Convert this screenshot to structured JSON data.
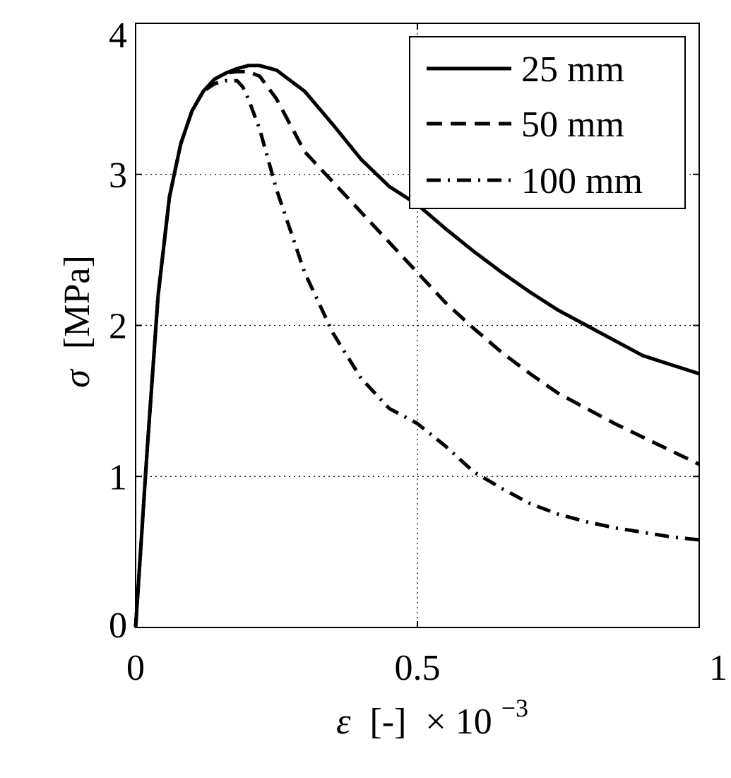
{
  "chart_data": {
    "type": "line",
    "title": "",
    "xlabel": {
      "symbol": "ε",
      "unit": "[-]",
      "multiplier": "× 10",
      "exponent": "−3"
    },
    "ylabel": {
      "symbol": "σ",
      "unit": "[MPa]"
    },
    "xlim": [
      0,
      1
    ],
    "ylim": [
      0,
      4
    ],
    "xticks": [
      0,
      0.5,
      1
    ],
    "xtick_labels": [
      "0",
      "0.5",
      "1"
    ],
    "yticks": [
      0,
      1,
      2,
      3,
      4
    ],
    "ytick_labels": [
      "0",
      "1",
      "2",
      "3",
      "4"
    ],
    "grid": true,
    "legend_position": "top-right",
    "series": [
      {
        "name": "25 mm",
        "line_style": "solid",
        "x": [
          0,
          0.02,
          0.04,
          0.06,
          0.08,
          0.1,
          0.12,
          0.14,
          0.16,
          0.18,
          0.2,
          0.22,
          0.25,
          0.3,
          0.35,
          0.4,
          0.45,
          0.5,
          0.55,
          0.6,
          0.65,
          0.7,
          0.75,
          0.8,
          0.85,
          0.9,
          0.95,
          1.0
        ],
        "y": [
          0,
          1.15,
          2.2,
          2.85,
          3.2,
          3.42,
          3.55,
          3.63,
          3.67,
          3.7,
          3.72,
          3.72,
          3.69,
          3.55,
          3.33,
          3.1,
          2.92,
          2.8,
          2.64,
          2.49,
          2.35,
          2.22,
          2.1,
          2.0,
          1.9,
          1.8,
          1.74,
          1.68
        ]
      },
      {
        "name": "50 mm",
        "line_style": "dashed",
        "x": [
          0,
          0.02,
          0.04,
          0.06,
          0.08,
          0.1,
          0.12,
          0.14,
          0.16,
          0.18,
          0.2,
          0.22,
          0.25,
          0.3,
          0.35,
          0.4,
          0.45,
          0.5,
          0.55,
          0.6,
          0.65,
          0.7,
          0.75,
          0.8,
          0.85,
          0.9,
          0.95,
          1.0
        ],
        "y": [
          0,
          1.15,
          2.2,
          2.85,
          3.2,
          3.42,
          3.55,
          3.63,
          3.67,
          3.68,
          3.68,
          3.65,
          3.5,
          3.15,
          2.95,
          2.75,
          2.55,
          2.35,
          2.15,
          1.98,
          1.82,
          1.68,
          1.55,
          1.45,
          1.35,
          1.26,
          1.17,
          1.08
        ]
      },
      {
        "name": "100 mm",
        "line_style": "dash-dot",
        "x": [
          0,
          0.02,
          0.04,
          0.06,
          0.08,
          0.1,
          0.12,
          0.14,
          0.16,
          0.18,
          0.19,
          0.2,
          0.22,
          0.25,
          0.3,
          0.35,
          0.4,
          0.45,
          0.5,
          0.55,
          0.6,
          0.65,
          0.7,
          0.75,
          0.8,
          0.85,
          0.9,
          0.95,
          1.0
        ],
        "y": [
          0,
          1.15,
          2.2,
          2.85,
          3.2,
          3.42,
          3.55,
          3.6,
          3.62,
          3.62,
          3.58,
          3.5,
          3.3,
          2.9,
          2.35,
          1.95,
          1.65,
          1.45,
          1.35,
          1.2,
          1.03,
          0.92,
          0.82,
          0.75,
          0.7,
          0.66,
          0.63,
          0.6,
          0.58
        ]
      }
    ]
  }
}
